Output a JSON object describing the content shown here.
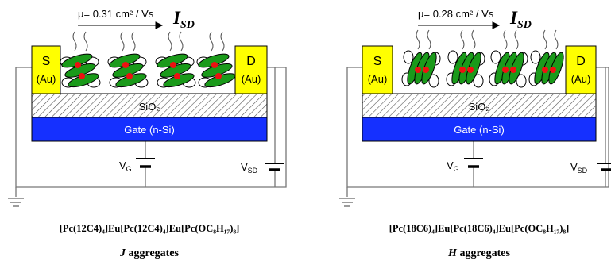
{
  "panels": [
    {
      "mobility_label": "μ= 0.31 cm² / Vs",
      "current_label": "I",
      "current_sub": "SD",
      "source_label": "S",
      "source_metal": "(Au)",
      "drain_label": "D",
      "drain_metal": "(Au)",
      "oxide_label": "SiO₂",
      "gate_label": "Gate (n-Si)",
      "vg_label": "V",
      "vg_sub": "G",
      "vsd_label": "V",
      "vsd_sub": "SD",
      "formula": "[Pc(12C4)₄]Eu[Pc(12C4)₄]Eu[Pc(OC₈H₁₇)₈]",
      "aggregate_letter": "J",
      "aggregate_word": " aggregates"
    },
    {
      "mobility_label": "μ= 0.28 cm² / Vs",
      "current_label": "I",
      "current_sub": "SD",
      "source_label": "S",
      "source_metal": "(Au)",
      "drain_label": "D",
      "drain_metal": "(Au)",
      "oxide_label": "SiO₂",
      "gate_label": "Gate (n-Si)",
      "vg_label": "V",
      "vg_sub": "G",
      "vsd_label": "V",
      "vsd_sub": "SD",
      "formula": "[Pc(18C6)₄]Eu[Pc(18C6)₄]Eu[Pc(OC₈H₁₇)₈]",
      "aggregate_letter": "H",
      "aggregate_word": " aggregates"
    }
  ],
  "colors": {
    "electrode": "#ffff00",
    "gate": "#1530ff",
    "molecule": "#1a9a1a",
    "metal_center": "#ee1111"
  }
}
